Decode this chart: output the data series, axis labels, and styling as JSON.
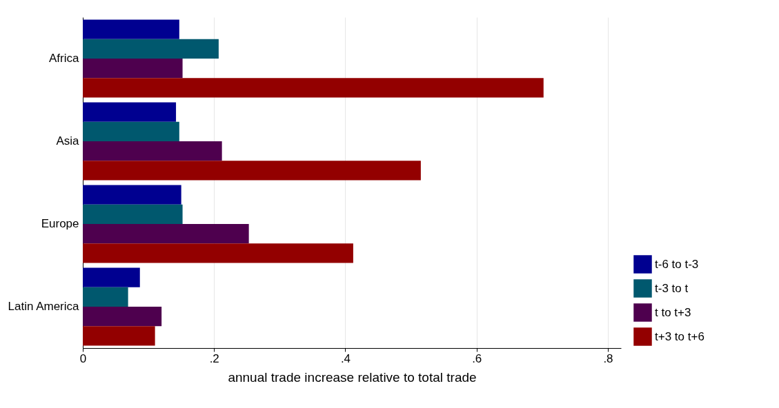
{
  "chart_data": {
    "type": "bar",
    "orientation": "horizontal",
    "xlabel": "annual trade increase relative to total trade",
    "categories": [
      "Africa",
      "Asia",
      "Europe",
      "Latin America"
    ],
    "series": [
      {
        "name": "t-6 to t-3",
        "color": "#000090",
        "values": [
          0.147,
          0.142,
          0.15,
          0.087
        ]
      },
      {
        "name": "t-3 to t",
        "color": "#00586e",
        "values": [
          0.207,
          0.147,
          0.152,
          0.069
        ]
      },
      {
        "name": "t to t+3",
        "color": "#4e004e",
        "values": [
          0.152,
          0.212,
          0.253,
          0.12
        ]
      },
      {
        "name": "t+3 to t+6",
        "color": "#930000",
        "values": [
          0.702,
          0.515,
          0.412,
          0.11
        ]
      }
    ],
    "xlim": [
      0,
      0.82
    ],
    "xticks": [
      0,
      {
        "value": 0.2,
        "label": ".2"
      },
      {
        "value": 0.4,
        "label": ".4"
      },
      {
        "value": 0.6,
        "label": ".6"
      },
      {
        "value": 0.8,
        "label": ".8"
      }
    ],
    "grid": "x",
    "legend": "bottom right"
  }
}
